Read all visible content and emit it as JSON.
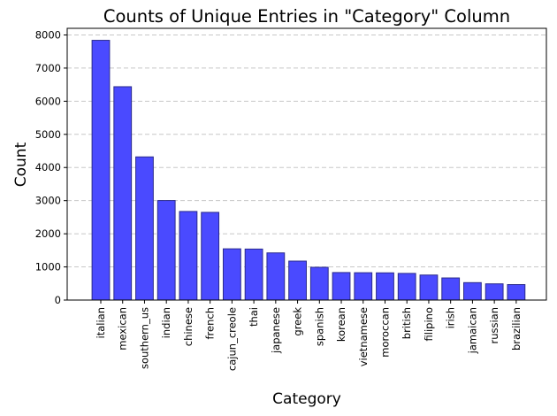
{
  "chart_data": {
    "type": "bar",
    "title": "Counts of Unique Entries in \"Category\" Column",
    "xlabel": "Category",
    "ylabel": "Count",
    "categories": [
      "italian",
      "mexican",
      "southern_us",
      "indian",
      "chinese",
      "french",
      "cajun_creole",
      "thai",
      "japanese",
      "greek",
      "spanish",
      "korean",
      "vietnamese",
      "moroccan",
      "british",
      "filipino",
      "irish",
      "jamaican",
      "russian",
      "brazilian"
    ],
    "values": [
      7838,
      6438,
      4320,
      3003,
      2673,
      2646,
      1546,
      1539,
      1423,
      1175,
      989,
      830,
      825,
      821,
      804,
      755,
      667,
      526,
      489,
      467
    ],
    "ylim": [
      0,
      8200
    ],
    "yticks": [
      0,
      1000,
      2000,
      3000,
      4000,
      5000,
      6000,
      7000,
      8000
    ],
    "grid": "y-dashed",
    "bar_color": "#4a4aff",
    "bar_edge_color": "#2b2b8c"
  }
}
